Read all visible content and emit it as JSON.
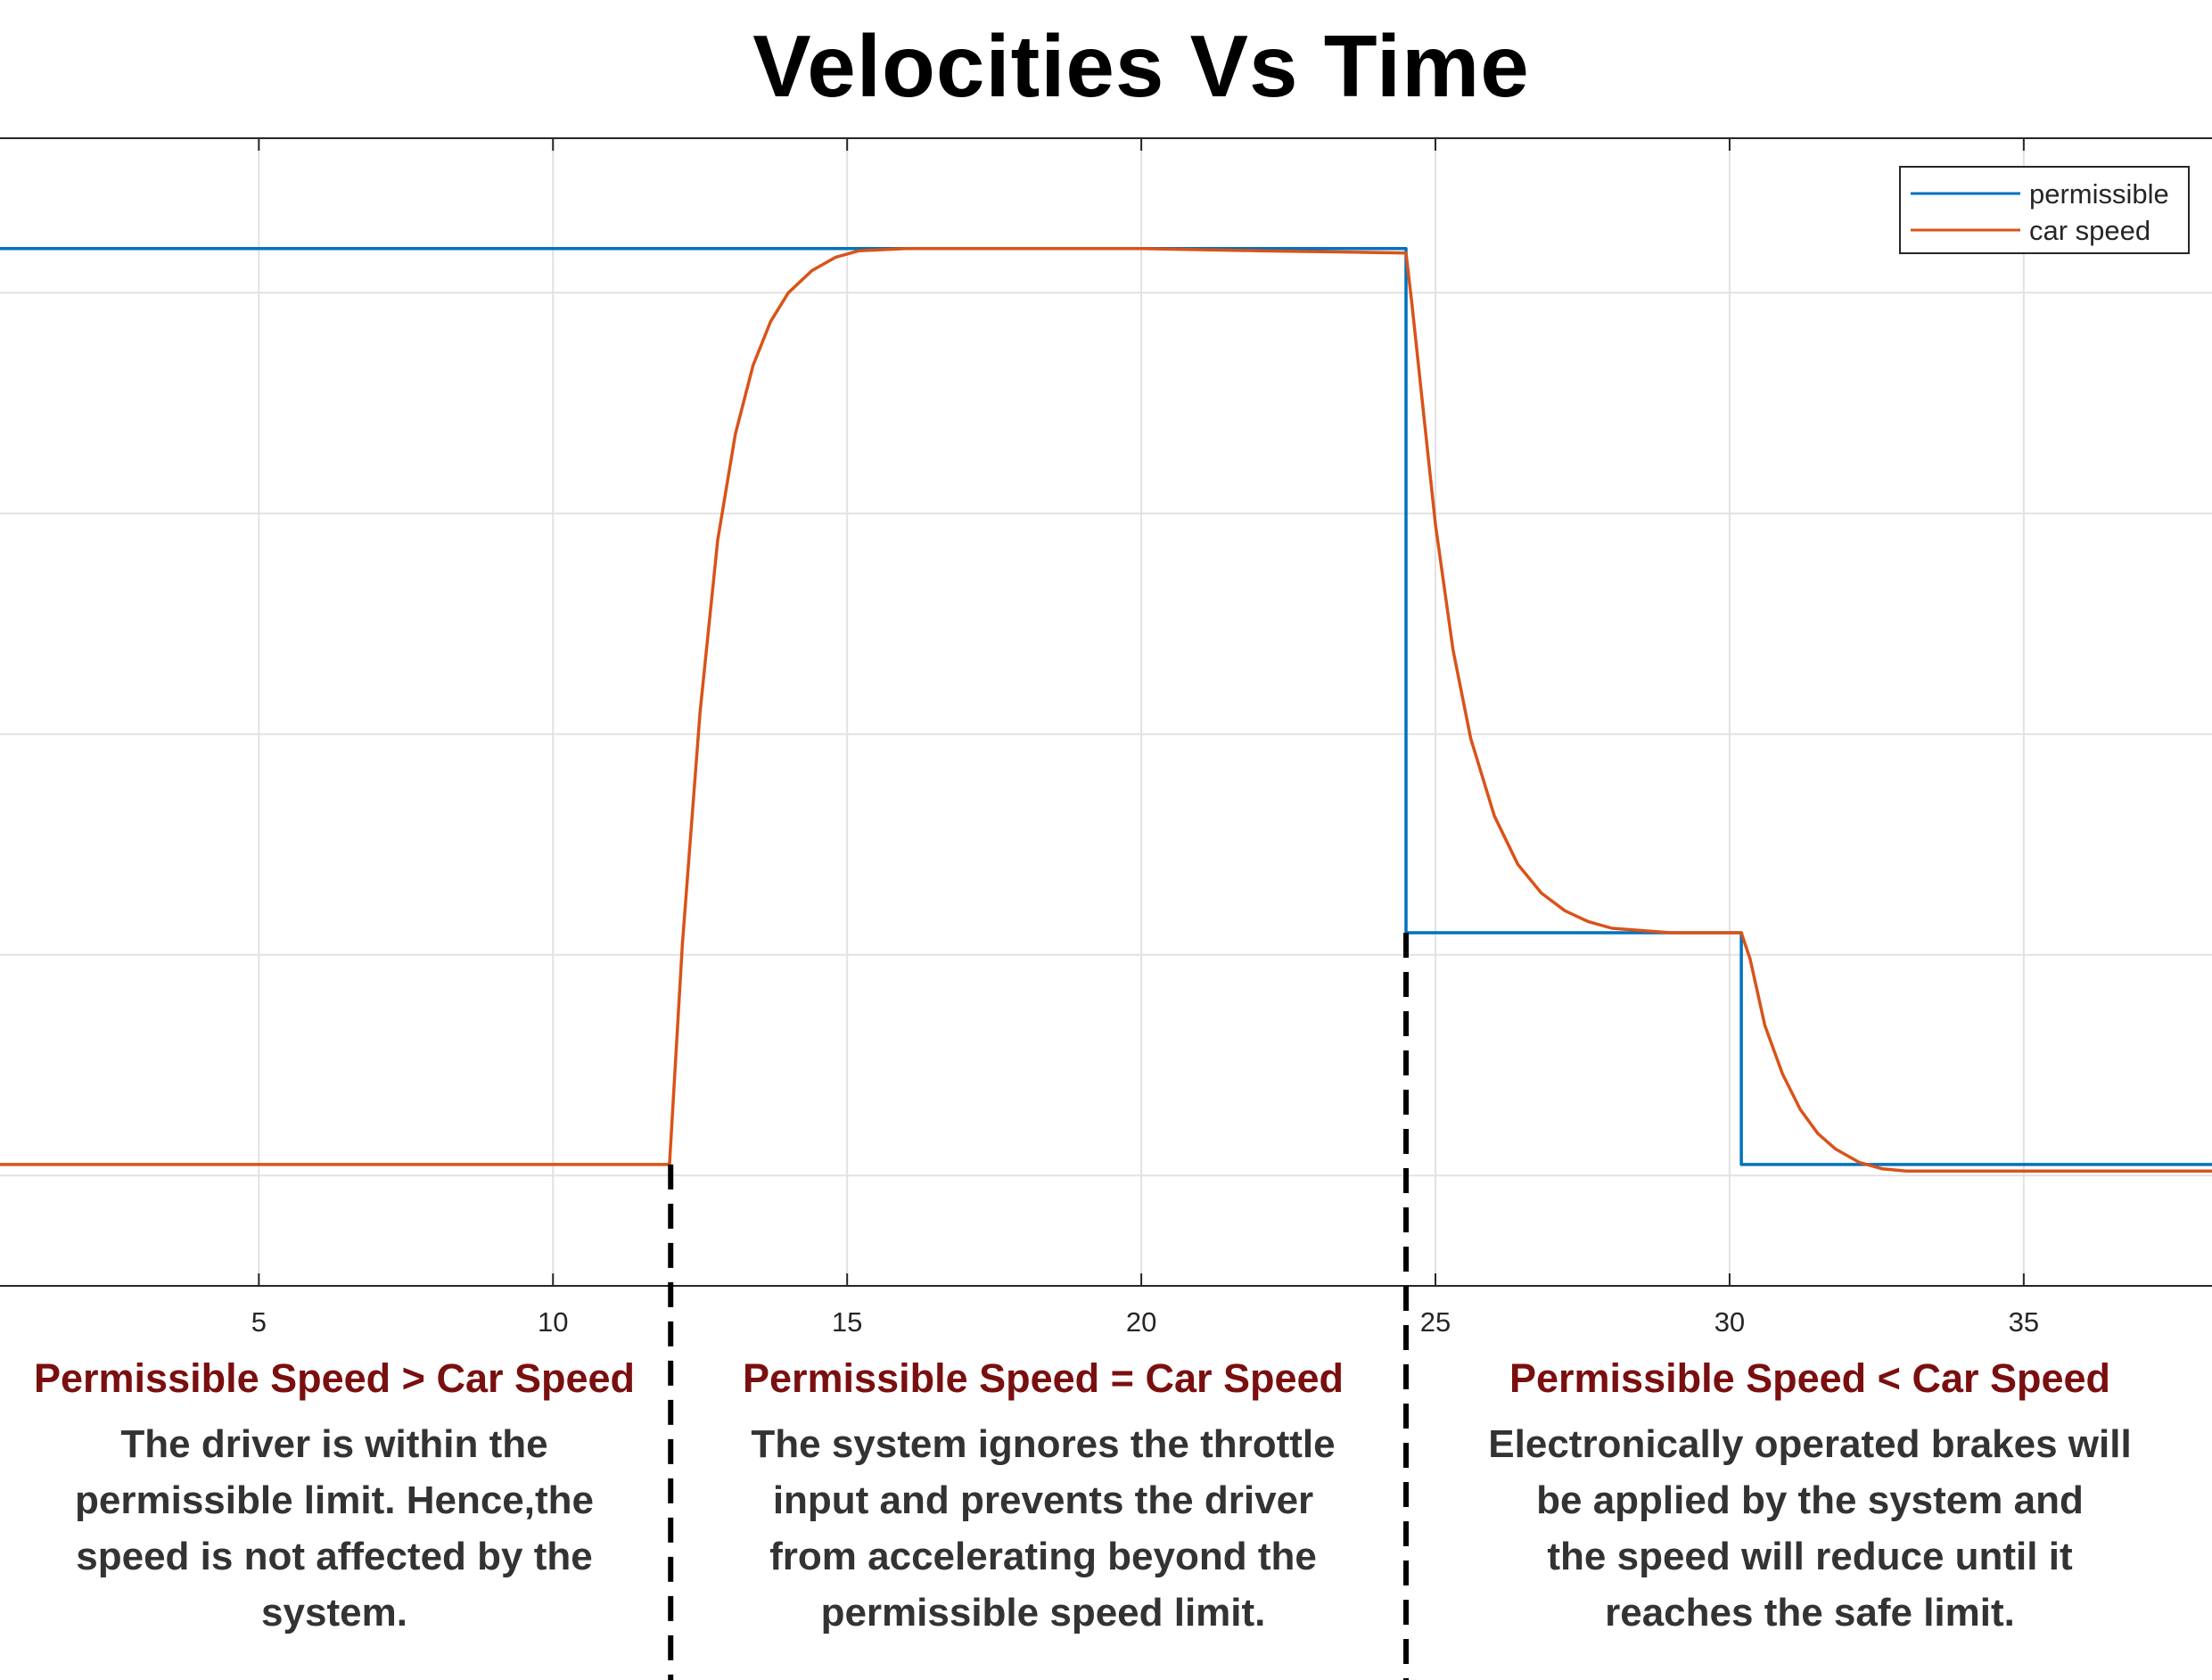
{
  "chart_data": {
    "type": "line",
    "title": "Velocities Vs Time",
    "xlabel": "",
    "ylabel": "",
    "xlim": [
      0.6,
      38.2
    ],
    "ylim": [
      0,
      5.2
    ],
    "xticks": [
      5,
      10,
      15,
      20,
      25,
      30,
      35
    ],
    "grid": true,
    "legend_position": "top-right",
    "series": [
      {
        "name": "permissible",
        "color": "#0072BD",
        "x": [
          0.6,
          24.5,
          24.5,
          30.2,
          30.2,
          38.2
        ],
        "values": [
          4.7,
          4.7,
          1.6,
          1.6,
          0.55,
          0.55
        ]
      },
      {
        "name": "car speed",
        "color": "#D95319",
        "x": [
          0.6,
          11.98,
          12.2,
          12.5,
          12.8,
          13.1,
          13.4,
          13.7,
          14.0,
          14.4,
          14.8,
          15.2,
          16.0,
          18.0,
          20.0,
          22.0,
          24.5,
          24.6,
          24.8,
          25.0,
          25.3,
          25.6,
          26.0,
          26.4,
          26.8,
          27.2,
          27.6,
          28.0,
          29.0,
          30.2,
          30.35,
          30.6,
          30.9,
          31.2,
          31.5,
          31.8,
          32.2,
          32.6,
          33.0,
          34.0,
          36.0,
          38.2
        ],
        "values": [
          0.55,
          0.55,
          1.55,
          2.6,
          3.38,
          3.86,
          4.17,
          4.37,
          4.5,
          4.6,
          4.66,
          4.69,
          4.7,
          4.7,
          4.7,
          4.69,
          4.68,
          4.45,
          3.95,
          3.45,
          2.88,
          2.48,
          2.13,
          1.91,
          1.78,
          1.7,
          1.65,
          1.62,
          1.6,
          1.6,
          1.48,
          1.18,
          0.96,
          0.8,
          0.69,
          0.62,
          0.56,
          0.53,
          0.52,
          0.52,
          0.52,
          0.52
        ]
      }
    ],
    "region_boundaries": [
      12.0,
      24.5
    ]
  },
  "regions": [
    {
      "title": "Permissible Speed > Car Speed",
      "body": "The driver is within the\npermissible limit. Hence,the\nspeed is not affected by the\nsystem."
    },
    {
      "title": "Permissible Speed = Car Speed",
      "body": "The system ignores the throttle\ninput and prevents the driver\nfrom accelerating beyond the\npermissible speed limit."
    },
    {
      "title": "Permissible Speed < Car Speed",
      "body": "Electronically operated brakes will\nbe applied by the system and\nthe speed will reduce until it\nreaches the safe limit."
    }
  ]
}
